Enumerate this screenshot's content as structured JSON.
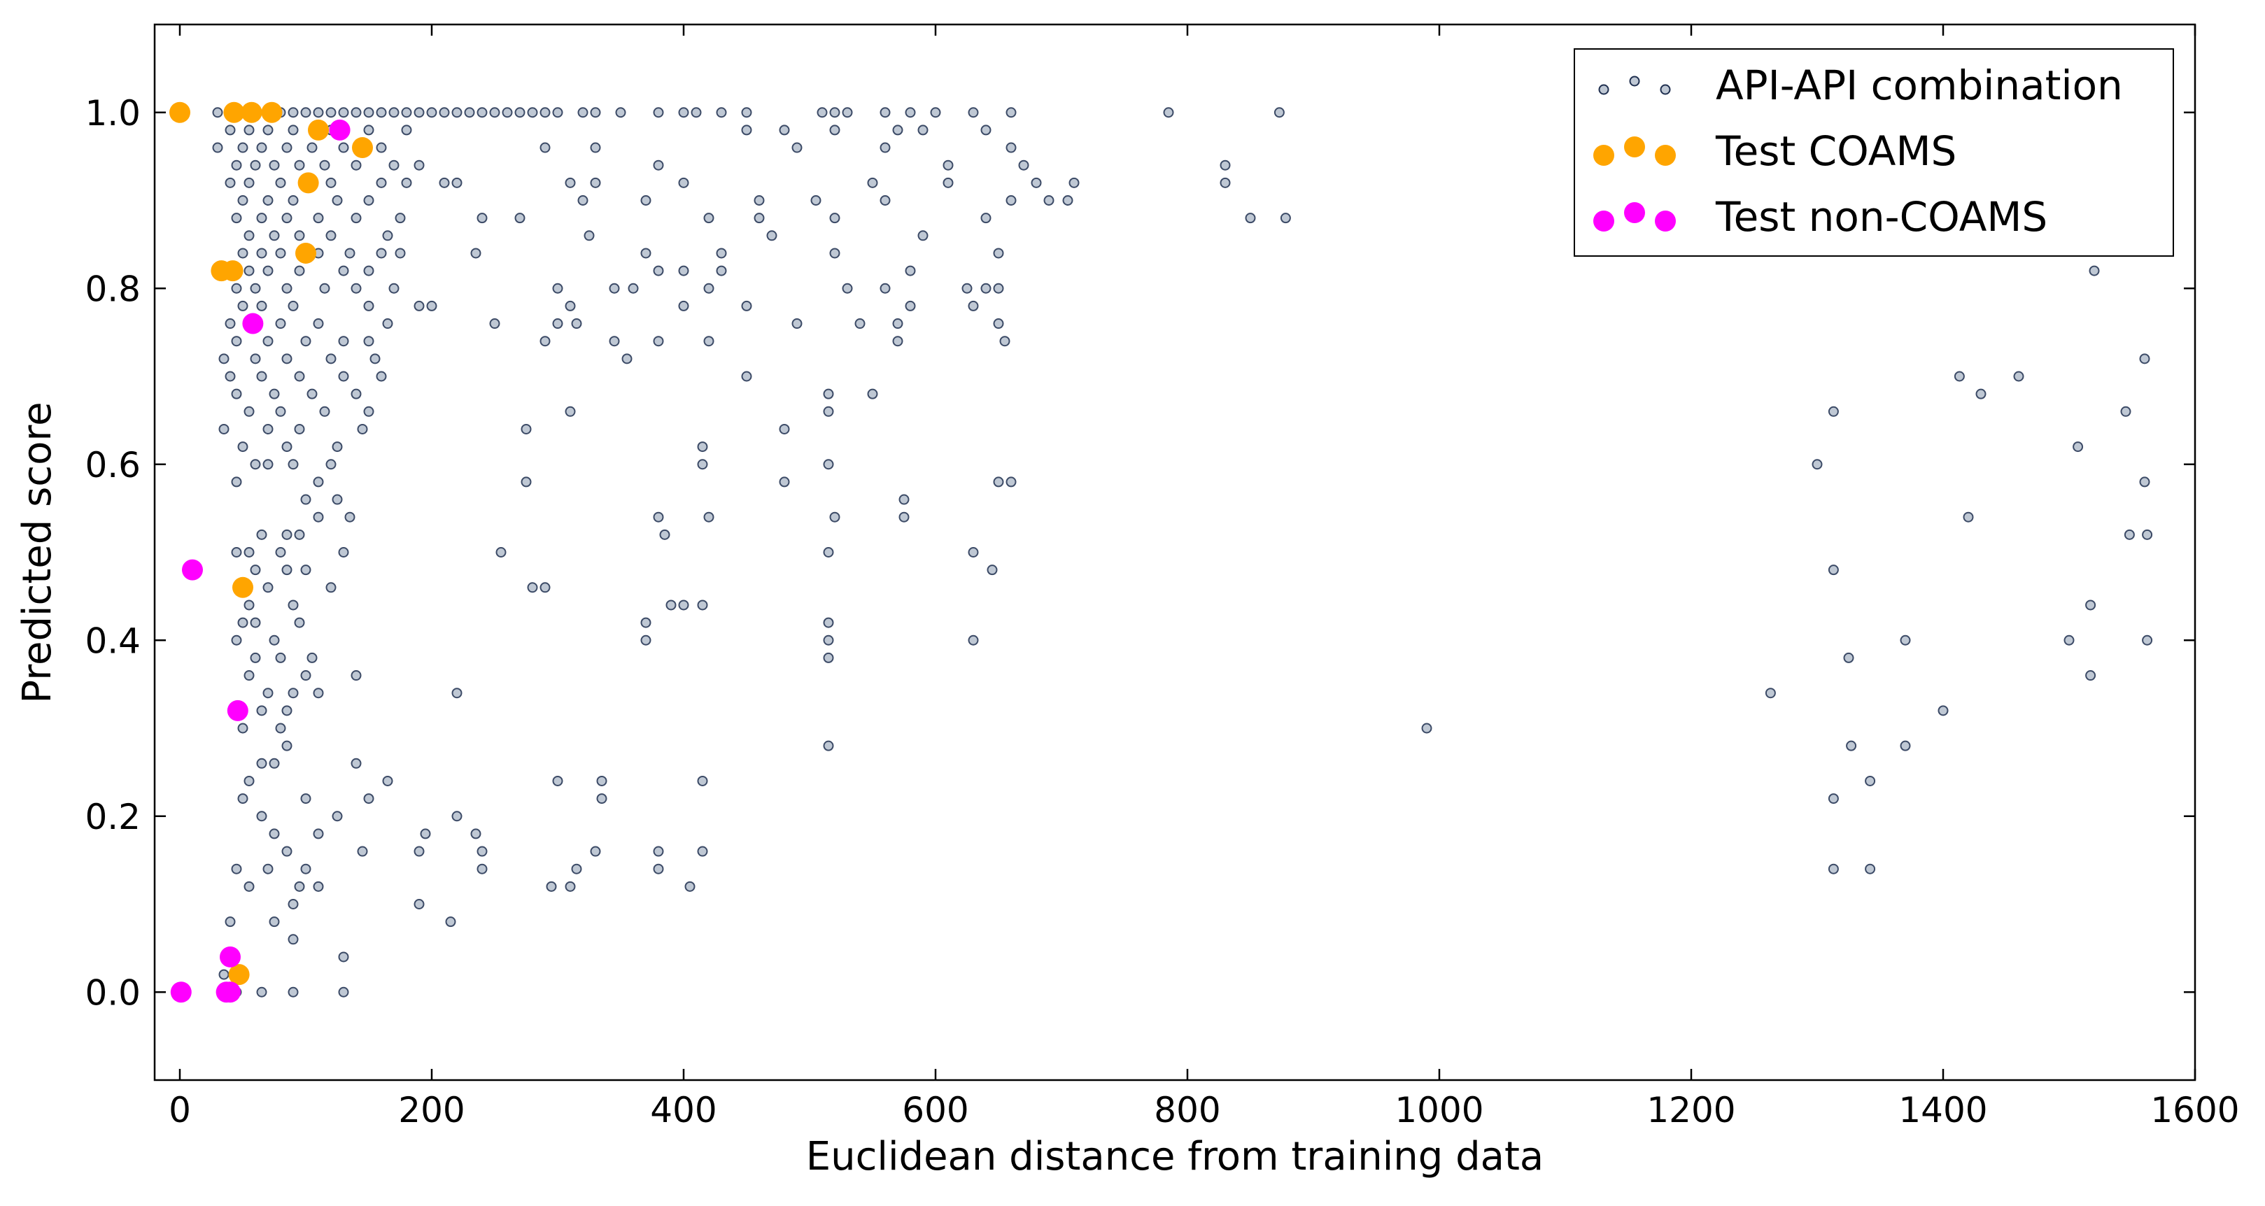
{
  "chart_data": {
    "type": "scatter",
    "x_label": "Euclidean distance from training data",
    "y_label": "Predicted score",
    "xlim": [
      -20,
      1600
    ],
    "ylim": [
      -0.1,
      1.1
    ],
    "xticks": [
      0,
      200,
      400,
      600,
      800,
      1000,
      1200,
      1400,
      1600
    ],
    "yticks": [
      {
        "value": 0,
        "label": "0.0"
      },
      0.2,
      0.4,
      0.6,
      0.8,
      {
        "value": 1,
        "label": "1.0"
      }
    ],
    "legend": "upper right",
    "series": [
      {
        "name": "API-API combination",
        "color": "#8a9bb0",
        "edgecolor": "#1f2f4f",
        "x": [
          30,
          40,
          50,
          60,
          70,
          80,
          90,
          100,
          110,
          120,
          130,
          140,
          150,
          160,
          170,
          180,
          190,
          200,
          210,
          220,
          230,
          240,
          250,
          260,
          270,
          280,
          290,
          300,
          320,
          330,
          350,
          380,
          400,
          410,
          430,
          450,
          510,
          520,
          530,
          560,
          580,
          600,
          630,
          660,
          785,
          873,
          40,
          55,
          70,
          90,
          120,
          150,
          180,
          450,
          480,
          520,
          570,
          590,
          640,
          30,
          50,
          65,
          85,
          105,
          130,
          160,
          290,
          330,
          490,
          560,
          660,
          45,
          60,
          75,
          95,
          115,
          140,
          170,
          190,
          380,
          610,
          670,
          830,
          40,
          55,
          80,
          120,
          160,
          180,
          210,
          220,
          310,
          330,
          400,
          550,
          610,
          680,
          710,
          830,
          50,
          70,
          90,
          125,
          150,
          320,
          370,
          460,
          505,
          560,
          660,
          690,
          705,
          45,
          65,
          85,
          110,
          140,
          175,
          240,
          270,
          420,
          460,
          520,
          640,
          850,
          878,
          55,
          75,
          95,
          120,
          165,
          325,
          470,
          590,
          50,
          65,
          80,
          110,
          135,
          160,
          175,
          235,
          370,
          430,
          520,
          650,
          55,
          70,
          95,
          130,
          150,
          380,
          400,
          430,
          580,
          1520,
          45,
          60,
          85,
          115,
          140,
          170,
          300,
          345,
          360,
          420,
          530,
          560,
          625,
          640,
          650,
          50,
          65,
          90,
          150,
          190,
          200,
          310,
          400,
          450,
          580,
          630,
          40,
          55,
          80,
          110,
          165,
          250,
          300,
          315,
          490,
          540,
          570,
          650,
          45,
          70,
          100,
          130,
          150,
          290,
          345,
          380,
          420,
          570,
          655,
          35,
          60,
          85,
          120,
          155,
          355,
          1560,
          40,
          65,
          95,
          130,
          160,
          450,
          1413,
          1460,
          45,
          75,
          105,
          140,
          515,
          550,
          1430,
          55,
          80,
          115,
          150,
          310,
          515,
          1313,
          1545,
          35,
          70,
          95,
          145,
          275,
          480,
          50,
          85,
          125,
          415,
          1507,
          60,
          70,
          90,
          120,
          415,
          515,
          1300,
          45,
          110,
          275,
          480,
          650,
          660,
          1560,
          100,
          125,
          575,
          110,
          135,
          380,
          420,
          520,
          575,
          1420,
          65,
          85,
          95,
          385,
          1548,
          1562,
          45,
          55,
          80,
          130,
          255,
          515,
          630,
          60,
          85,
          100,
          645,
          1313,
          70,
          120,
          280,
          290,
          55,
          90,
          390,
          400,
          415,
          1517,
          50,
          60,
          95,
          370,
          515,
          45,
          75,
          370,
          515,
          630,
          1370,
          1500,
          1562,
          60,
          80,
          105,
          515,
          1325,
          55,
          100,
          140,
          1517,
          70,
          90,
          110,
          220,
          1263,
          65,
          85,
          1400,
          50,
          80,
          990,
          85,
          515,
          1327,
          1370,
          65,
          75,
          140,
          55,
          165,
          300,
          335,
          415,
          1342,
          50,
          100,
          150,
          335,
          1313,
          65,
          125,
          220,
          75,
          110,
          195,
          235,
          85,
          145,
          190,
          240,
          330,
          380,
          415,
          45,
          70,
          100,
          240,
          315,
          380,
          1313,
          1342,
          55,
          95,
          110,
          295,
          310,
          405,
          90,
          190,
          40,
          75,
          215,
          90,
          130,
          35,
          45,
          65,
          90,
          130
        ],
        "values": [
          1,
          1,
          1,
          1,
          1,
          1,
          1,
          1,
          1,
          1,
          1,
          1,
          1,
          1,
          1,
          1,
          1,
          1,
          1,
          1,
          1,
          1,
          1,
          1,
          1,
          1,
          1,
          1,
          1,
          1,
          1,
          1,
          1,
          1,
          1,
          1,
          1,
          1,
          1,
          1,
          1,
          1,
          1,
          1,
          1,
          1,
          0.98,
          0.98,
          0.98,
          0.98,
          0.98,
          0.98,
          0.98,
          0.98,
          0.98,
          0.98,
          0.98,
          0.98,
          0.98,
          0.96,
          0.96,
          0.96,
          0.96,
          0.96,
          0.96,
          0.96,
          0.96,
          0.96,
          0.96,
          0.96,
          0.96,
          0.94,
          0.94,
          0.94,
          0.94,
          0.94,
          0.94,
          0.94,
          0.94,
          0.94,
          0.94,
          0.94,
          0.94,
          0.92,
          0.92,
          0.92,
          0.92,
          0.92,
          0.92,
          0.92,
          0.92,
          0.92,
          0.92,
          0.92,
          0.92,
          0.92,
          0.92,
          0.92,
          0.92,
          0.9,
          0.9,
          0.9,
          0.9,
          0.9,
          0.9,
          0.9,
          0.9,
          0.9,
          0.9,
          0.9,
          0.9,
          0.9,
          0.88,
          0.88,
          0.88,
          0.88,
          0.88,
          0.88,
          0.88,
          0.88,
          0.88,
          0.88,
          0.88,
          0.88,
          0.88,
          0.88,
          0.86,
          0.86,
          0.86,
          0.86,
          0.86,
          0.86,
          0.86,
          0.86,
          0.84,
          0.84,
          0.84,
          0.84,
          0.84,
          0.84,
          0.84,
          0.84,
          0.84,
          0.84,
          0.84,
          0.84,
          0.82,
          0.82,
          0.82,
          0.82,
          0.82,
          0.82,
          0.82,
          0.82,
          0.82,
          0.82,
          0.8,
          0.8,
          0.8,
          0.8,
          0.8,
          0.8,
          0.8,
          0.8,
          0.8,
          0.8,
          0.8,
          0.8,
          0.8,
          0.8,
          0.8,
          0.78,
          0.78,
          0.78,
          0.78,
          0.78,
          0.78,
          0.78,
          0.78,
          0.78,
          0.78,
          0.78,
          0.76,
          0.76,
          0.76,
          0.76,
          0.76,
          0.76,
          0.76,
          0.76,
          0.76,
          0.76,
          0.76,
          0.76,
          0.74,
          0.74,
          0.74,
          0.74,
          0.74,
          0.74,
          0.74,
          0.74,
          0.74,
          0.74,
          0.74,
          0.72,
          0.72,
          0.72,
          0.72,
          0.72,
          0.72,
          0.72,
          0.7,
          0.7,
          0.7,
          0.7,
          0.7,
          0.7,
          0.7,
          0.7,
          0.68,
          0.68,
          0.68,
          0.68,
          0.68,
          0.68,
          0.68,
          0.66,
          0.66,
          0.66,
          0.66,
          0.66,
          0.66,
          0.66,
          0.66,
          0.64,
          0.64,
          0.64,
          0.64,
          0.64,
          0.64,
          0.62,
          0.62,
          0.62,
          0.62,
          0.62,
          0.6,
          0.6,
          0.6,
          0.6,
          0.6,
          0.6,
          0.6,
          0.58,
          0.58,
          0.58,
          0.58,
          0.58,
          0.58,
          0.58,
          0.56,
          0.56,
          0.56,
          0.54,
          0.54,
          0.54,
          0.54,
          0.54,
          0.54,
          0.54,
          0.52,
          0.52,
          0.52,
          0.52,
          0.52,
          0.52,
          0.5,
          0.5,
          0.5,
          0.5,
          0.5,
          0.5,
          0.5,
          0.48,
          0.48,
          0.48,
          0.48,
          0.48,
          0.46,
          0.46,
          0.46,
          0.46,
          0.44,
          0.44,
          0.44,
          0.44,
          0.44,
          0.44,
          0.42,
          0.42,
          0.42,
          0.42,
          0.42,
          0.4,
          0.4,
          0.4,
          0.4,
          0.4,
          0.4,
          0.4,
          0.4,
          0.38,
          0.38,
          0.38,
          0.38,
          0.38,
          0.36,
          0.36,
          0.36,
          0.36,
          0.34,
          0.34,
          0.34,
          0.34,
          0.34,
          0.32,
          0.32,
          0.32,
          0.3,
          0.3,
          0.3,
          0.28,
          0.28,
          0.28,
          0.28,
          0.26,
          0.26,
          0.26,
          0.24,
          0.24,
          0.24,
          0.24,
          0.24,
          0.24,
          0.22,
          0.22,
          0.22,
          0.22,
          0.22,
          0.2,
          0.2,
          0.2,
          0.18,
          0.18,
          0.18,
          0.18,
          0.16,
          0.16,
          0.16,
          0.16,
          0.16,
          0.16,
          0.16,
          0.14,
          0.14,
          0.14,
          0.14,
          0.14,
          0.14,
          0.14,
          0.14,
          0.12,
          0.12,
          0.12,
          0.12,
          0.12,
          0.12,
          0.1,
          0.1,
          0.08,
          0.08,
          0.08,
          0.06,
          0.04,
          0.02,
          0,
          0,
          0,
          0
        ]
      },
      {
        "name": "Test COAMS",
        "color": "#ffa500",
        "x": [
          0,
          43,
          57,
          73,
          110,
          145,
          102,
          100,
          33,
          42,
          50,
          47
        ],
        "values": [
          1,
          1,
          1,
          1,
          0.98,
          0.96,
          0.92,
          0.84,
          0.82,
          0.82,
          0.46,
          0.02
        ]
      },
      {
        "name": "Test non-COAMS",
        "color": "#ff00ff",
        "x": [
          127,
          58,
          10,
          46,
          40,
          40,
          37,
          1
        ],
        "values": [
          0.98,
          0.76,
          0.48,
          0.32,
          0.04,
          0,
          0,
          0
        ]
      }
    ]
  }
}
